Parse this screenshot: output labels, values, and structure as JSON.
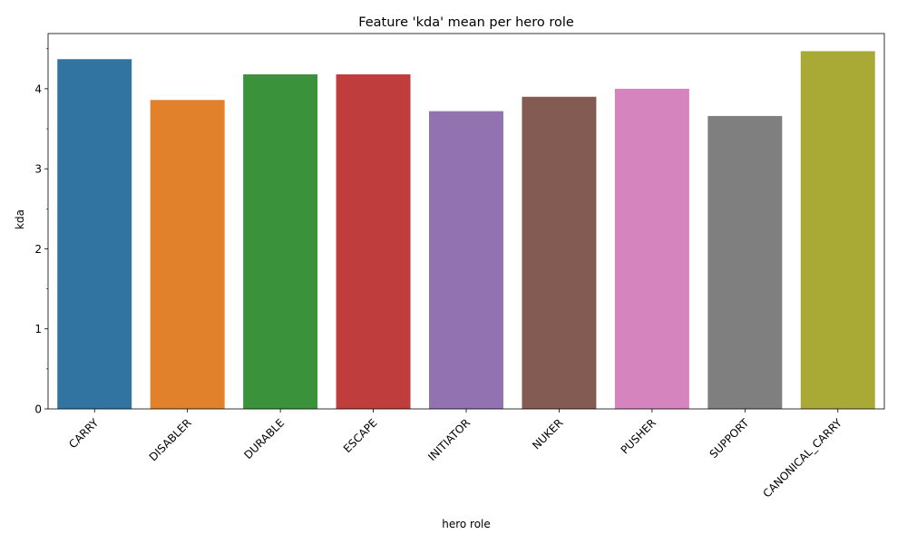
{
  "chart_data": {
    "type": "bar",
    "title": "Feature 'kda' mean per hero role",
    "xlabel": "hero role",
    "ylabel": "kda",
    "categories": [
      "CARRY",
      "DISABLER",
      "DURABLE",
      "ESCAPE",
      "INITIATOR",
      "NUKER",
      "PUSHER",
      "SUPPORT",
      "CANONICAL_CARRY"
    ],
    "values": [
      4.37,
      3.86,
      4.18,
      4.18,
      3.72,
      3.9,
      4.0,
      3.66,
      4.47
    ],
    "colors": [
      "#3274a1",
      "#e1812c",
      "#3a923a",
      "#c03d3e",
      "#9372b2",
      "#845b53",
      "#d684bd",
      "#7f7f7f",
      "#a9aa35"
    ],
    "ylim": [
      0,
      4.69
    ],
    "yticks": [
      0,
      1,
      2,
      3,
      4
    ],
    "yticks_minor": [
      0.5,
      1.5,
      2.5,
      3.5,
      4.5
    ],
    "xtick_rotation": 45,
    "grid": false,
    "legend": "none"
  }
}
